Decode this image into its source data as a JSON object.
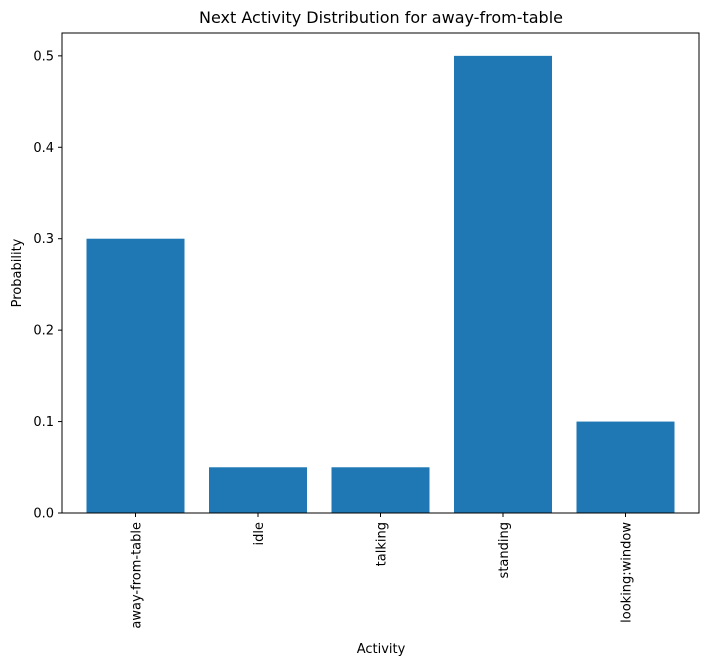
{
  "chart_data": {
    "type": "bar",
    "title": "Next Activity Distribution for away-from-table",
    "xlabel": "Activity",
    "ylabel": "Probability",
    "categories": [
      "away-from-table",
      "idle",
      "talking",
      "standing",
      "looking:window"
    ],
    "values": [
      0.3,
      0.05,
      0.05,
      0.5,
      0.1
    ],
    "ylim": [
      0,
      0.525
    ],
    "yticks": [
      "0.0",
      "0.1",
      "0.2",
      "0.3",
      "0.4",
      "0.5"
    ],
    "grid": false,
    "legend": "none",
    "colors": {
      "bar": "#1f77b4",
      "axis": "#000000",
      "background": "#ffffff"
    }
  }
}
